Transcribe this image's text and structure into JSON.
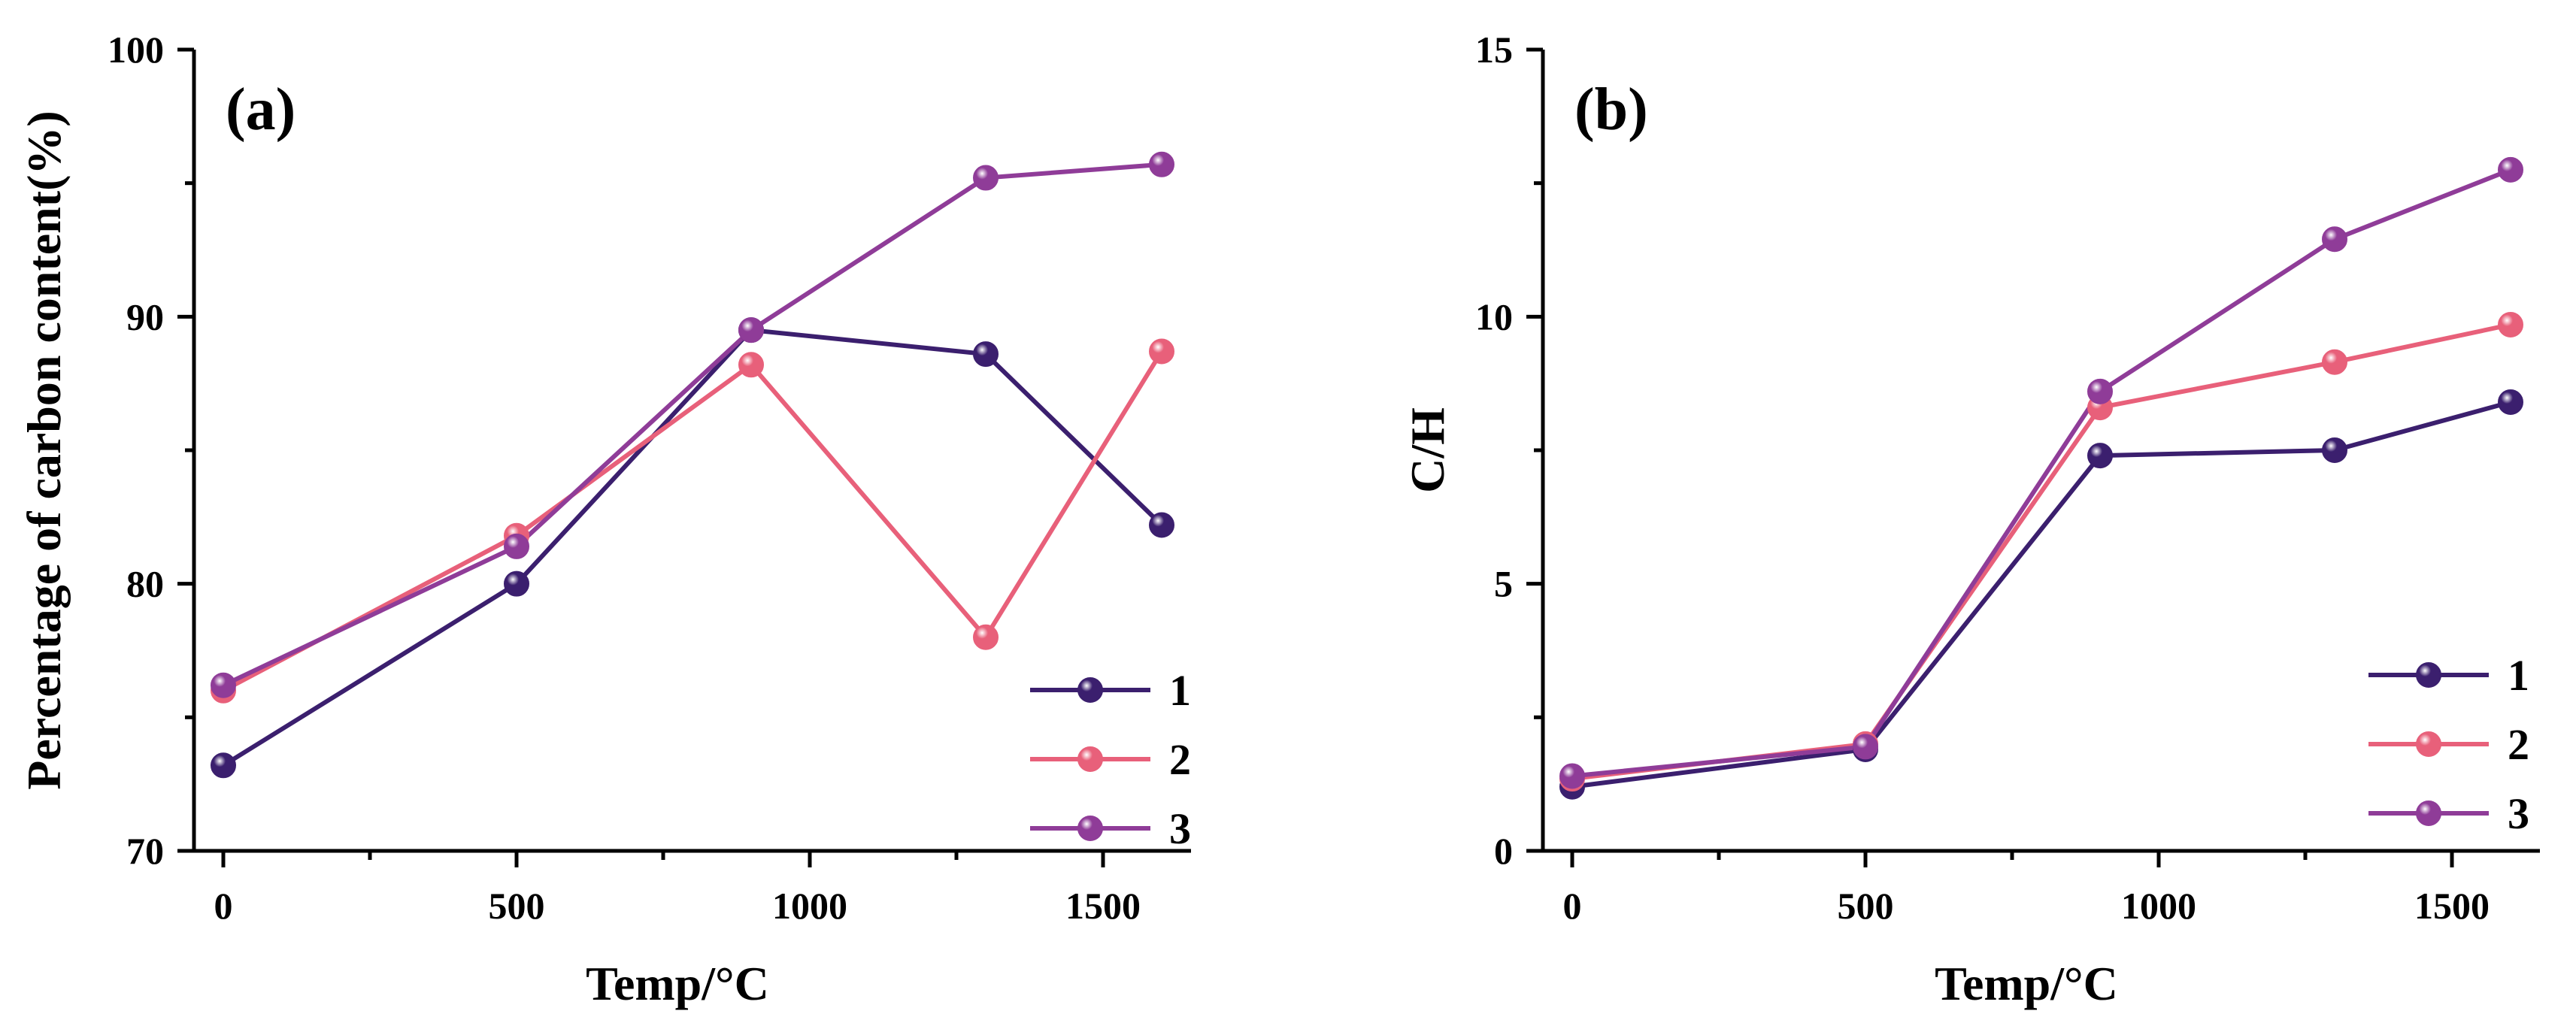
{
  "chart_data": [
    {
      "type": "line",
      "panel_label": "(a)",
      "xlabel": "Temp/°C",
      "ylabel": "Percentage of carbon content(%)",
      "x": [
        0,
        500,
        900,
        1300,
        1600
      ],
      "xlim": [
        -50,
        1650
      ],
      "ylim": [
        70,
        100
      ],
      "xticks": [
        0,
        500,
        1000,
        1500
      ],
      "xtick_labels": [
        "0",
        "500",
        "1000",
        "1500"
      ],
      "yticks": [
        70,
        80,
        90,
        100
      ],
      "ytick_labels": [
        "70",
        "80",
        "90",
        "100"
      ],
      "grid": false,
      "legend_position": "bottom-right",
      "series": [
        {
          "name": "1",
          "color": "#3b1f6e",
          "values": [
            73.2,
            80.0,
            89.5,
            88.6,
            82.2
          ]
        },
        {
          "name": "2",
          "color": "#e8607a",
          "values": [
            76.0,
            81.8,
            88.2,
            78.0,
            88.7
          ]
        },
        {
          "name": "3",
          "color": "#8f3c98",
          "values": [
            76.2,
            81.4,
            89.5,
            95.2,
            95.7
          ]
        }
      ]
    },
    {
      "type": "line",
      "panel_label": "(b)",
      "xlabel": "Temp/°C",
      "ylabel": "C/H",
      "x": [
        0,
        500,
        900,
        1300,
        1600
      ],
      "xlim": [
        -50,
        1650
      ],
      "ylim": [
        0,
        15
      ],
      "xticks": [
        0,
        500,
        1000,
        1500
      ],
      "xtick_labels": [
        "0",
        "500",
        "1000",
        "1500"
      ],
      "yticks": [
        0,
        5,
        10,
        15
      ],
      "ytick_labels": [
        "0",
        "5",
        "10",
        "15"
      ],
      "grid": false,
      "legend_position": "bottom-right",
      "series": [
        {
          "name": "1",
          "color": "#3b1f6e",
          "values": [
            1.2,
            1.9,
            7.4,
            7.5,
            8.4
          ]
        },
        {
          "name": "2",
          "color": "#e8607a",
          "values": [
            1.35,
            2.0,
            8.3,
            9.15,
            9.85
          ]
        },
        {
          "name": "3",
          "color": "#8f3c98",
          "values": [
            1.4,
            1.95,
            8.6,
            11.45,
            12.75
          ]
        }
      ]
    }
  ]
}
